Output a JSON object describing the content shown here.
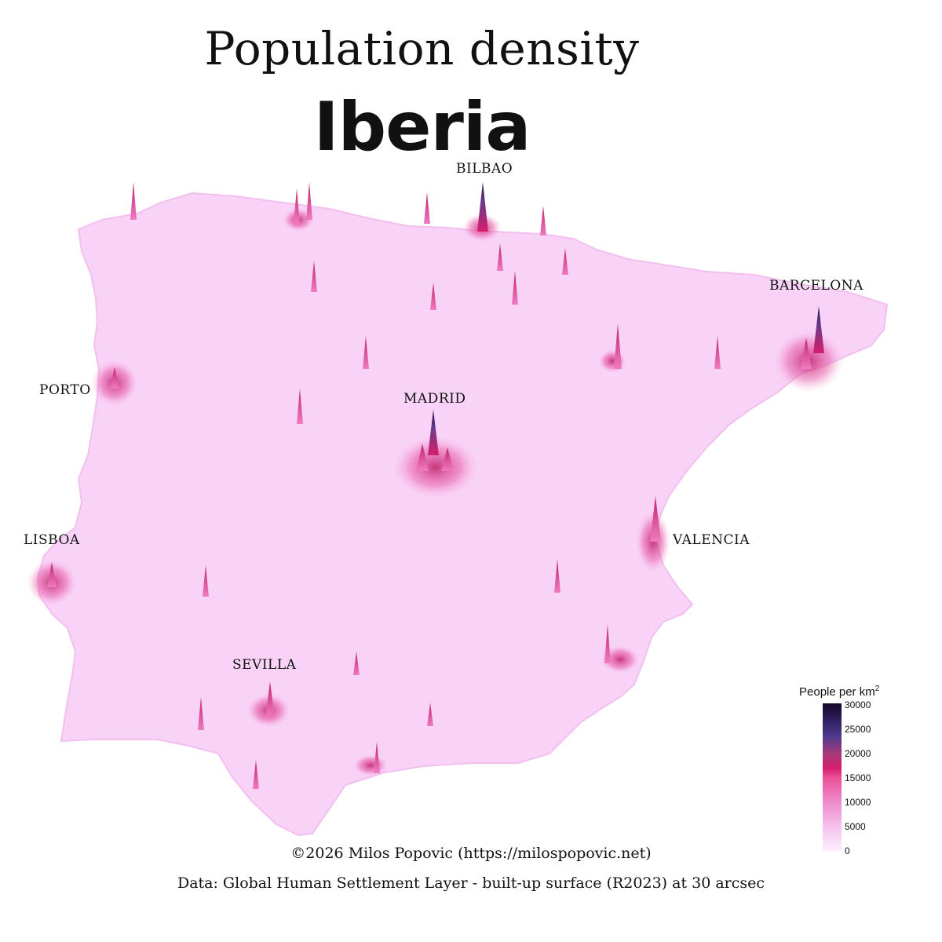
{
  "header": {
    "title": "Population density",
    "subtitle": "Iberia"
  },
  "cities": [
    {
      "name": "BILBAO"
    },
    {
      "name": "BARCELONA"
    },
    {
      "name": "PORTO"
    },
    {
      "name": "MADRID"
    },
    {
      "name": "LISBOA"
    },
    {
      "name": "VALENCIA"
    },
    {
      "name": "SEVILLA"
    }
  ],
  "legend": {
    "title": "People per  km",
    "unit_power": "2",
    "ticks": [
      "30000",
      "25000",
      "20000",
      "15000",
      "10000",
      "5000",
      "0"
    ],
    "colors": {
      "low": "#fdeefd",
      "mid": "#ea4f97",
      "high": "#14082b"
    }
  },
  "credits": {
    "line1": "©2026 Milos Popovic (https://milospopovic.net)",
    "line2": "Data: Global Human Settlement Layer - built-up surface (R2023) at 30 arcsec"
  }
}
